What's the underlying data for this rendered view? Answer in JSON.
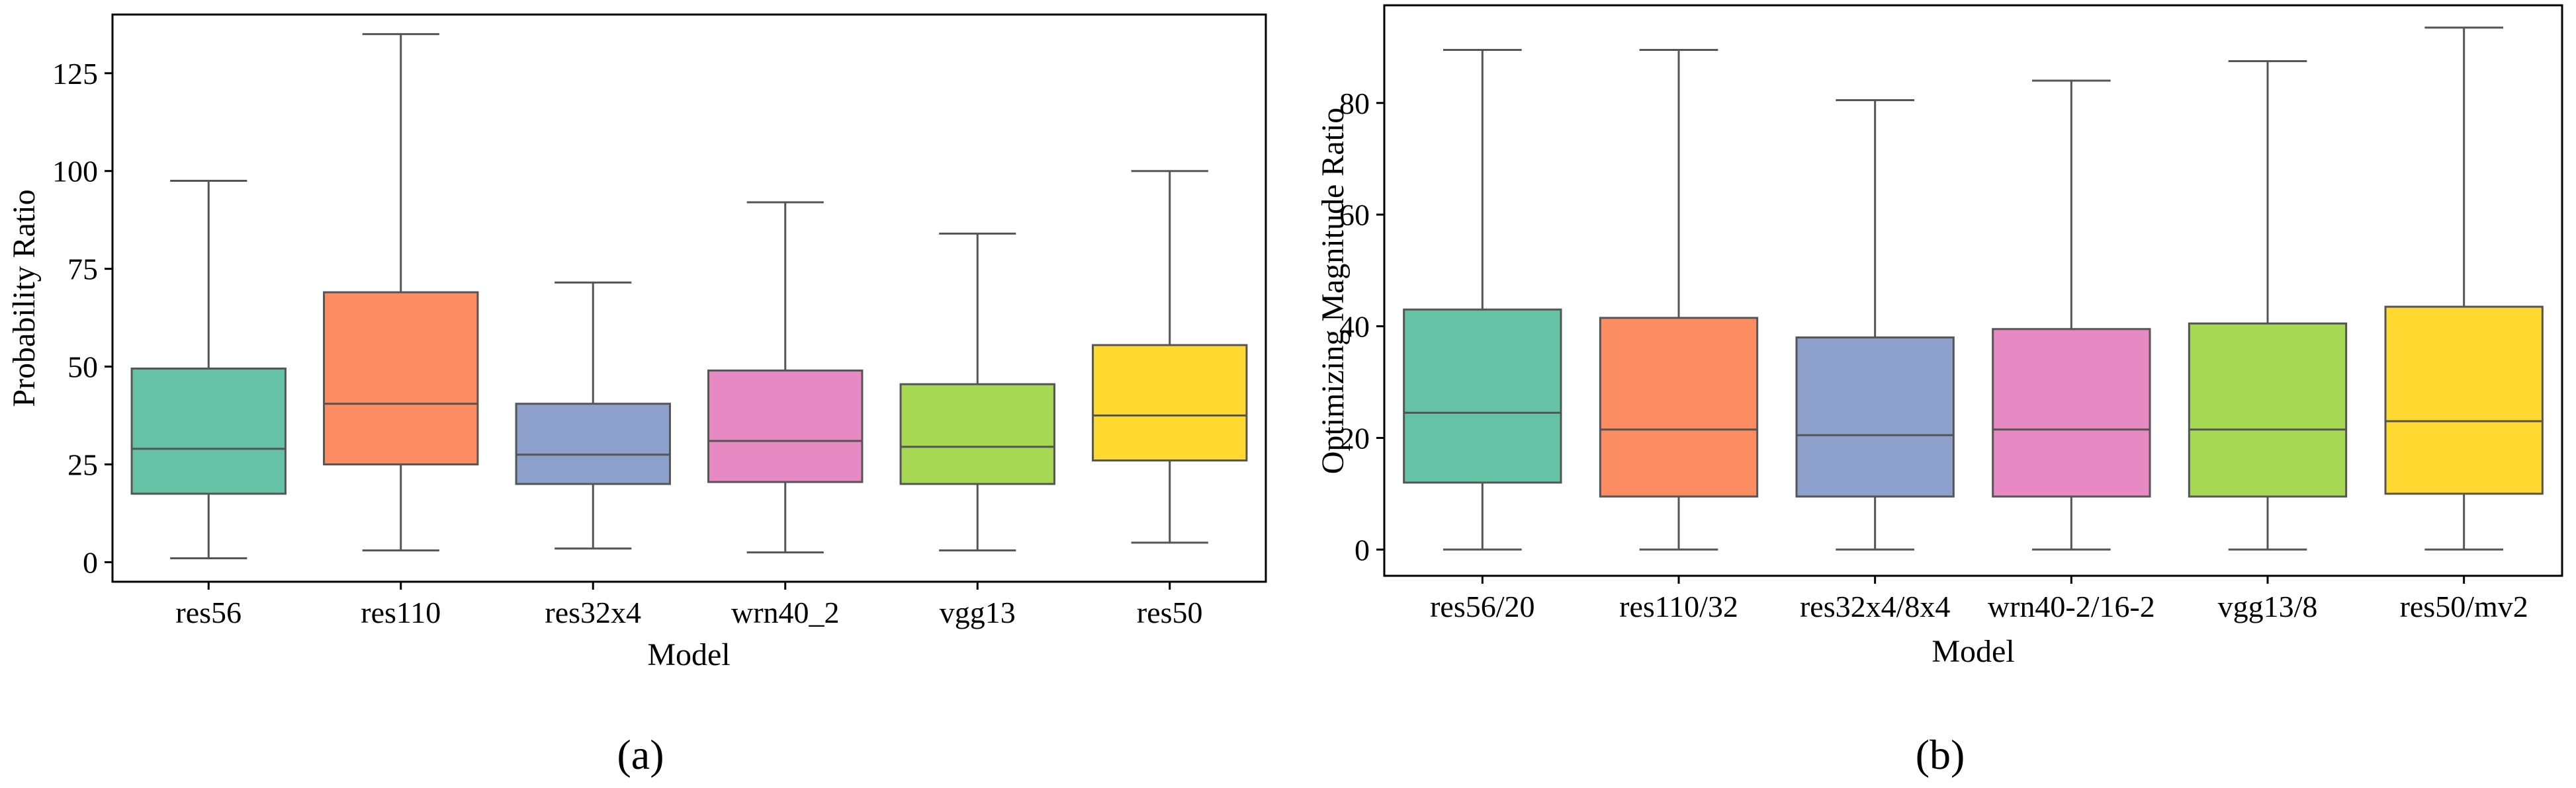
{
  "chart_data": [
    {
      "type": "box",
      "id": "a",
      "panel_label": "(a)",
      "xlabel": "Model",
      "ylabel": "Probability Ratio",
      "ylim": [
        -5,
        140
      ],
      "yticks": [
        0,
        25,
        50,
        75,
        100,
        125
      ],
      "ytick_labels": [
        "0",
        "25",
        "50",
        "75",
        "100",
        "125"
      ],
      "categories": [
        "res56",
        "res110",
        "res32x4",
        "wrn40_2",
        "vgg13",
        "res50"
      ],
      "colors": [
        "#66c2a5",
        "#fc8d62",
        "#8da0cb",
        "#e78ac3",
        "#a6d854",
        "#ffd92f"
      ],
      "boxes": [
        {
          "min": 1,
          "q1": 17.5,
          "median": 29,
          "q3": 49.5,
          "max": 97.5
        },
        {
          "min": 3,
          "q1": 25,
          "median": 40.5,
          "q3": 69,
          "max": 135
        },
        {
          "min": 3.5,
          "q1": 20,
          "median": 27.5,
          "q3": 40.5,
          "max": 71.5
        },
        {
          "min": 2.5,
          "q1": 20.5,
          "median": 31,
          "q3": 49,
          "max": 92
        },
        {
          "min": 3,
          "q1": 20,
          "median": 29.5,
          "q3": 45.5,
          "max": 84
        },
        {
          "min": 5,
          "q1": 26,
          "median": 37.5,
          "q3": 55.5,
          "max": 100
        }
      ]
    },
    {
      "type": "box",
      "id": "b",
      "panel_label": "(b)",
      "xlabel": "Model",
      "ylabel": "Optimizing Magnitude Ratio",
      "ylim": [
        -4.7,
        97.5
      ],
      "yticks": [
        0,
        20,
        40,
        60,
        80
      ],
      "ytick_labels": [
        "0",
        "20",
        "40",
        "60",
        "80"
      ],
      "categories": [
        "res56/20",
        "res110/32",
        "res32x4/8x4",
        "wrn40-2/16-2",
        "vgg13/8",
        "res50/mv2"
      ],
      "colors": [
        "#66c2a5",
        "#fc8d62",
        "#8da0cb",
        "#e78ac3",
        "#a6d854",
        "#ffd92f"
      ],
      "boxes": [
        {
          "min": 0,
          "q1": 12,
          "median": 24.5,
          "q3": 43,
          "max": 89.5
        },
        {
          "min": 0,
          "q1": 9.5,
          "median": 21.5,
          "q3": 41.5,
          "max": 89.5
        },
        {
          "min": 0,
          "q1": 9.5,
          "median": 20.5,
          "q3": 38,
          "max": 80.5
        },
        {
          "min": 0,
          "q1": 9.5,
          "median": 21.5,
          "q3": 39.5,
          "max": 84
        },
        {
          "min": 0,
          "q1": 9.5,
          "median": 21.5,
          "q3": 40.5,
          "max": 87.5
        },
        {
          "min": 0,
          "q1": 10,
          "median": 23,
          "q3": 43.5,
          "max": 93.5
        }
      ]
    }
  ]
}
